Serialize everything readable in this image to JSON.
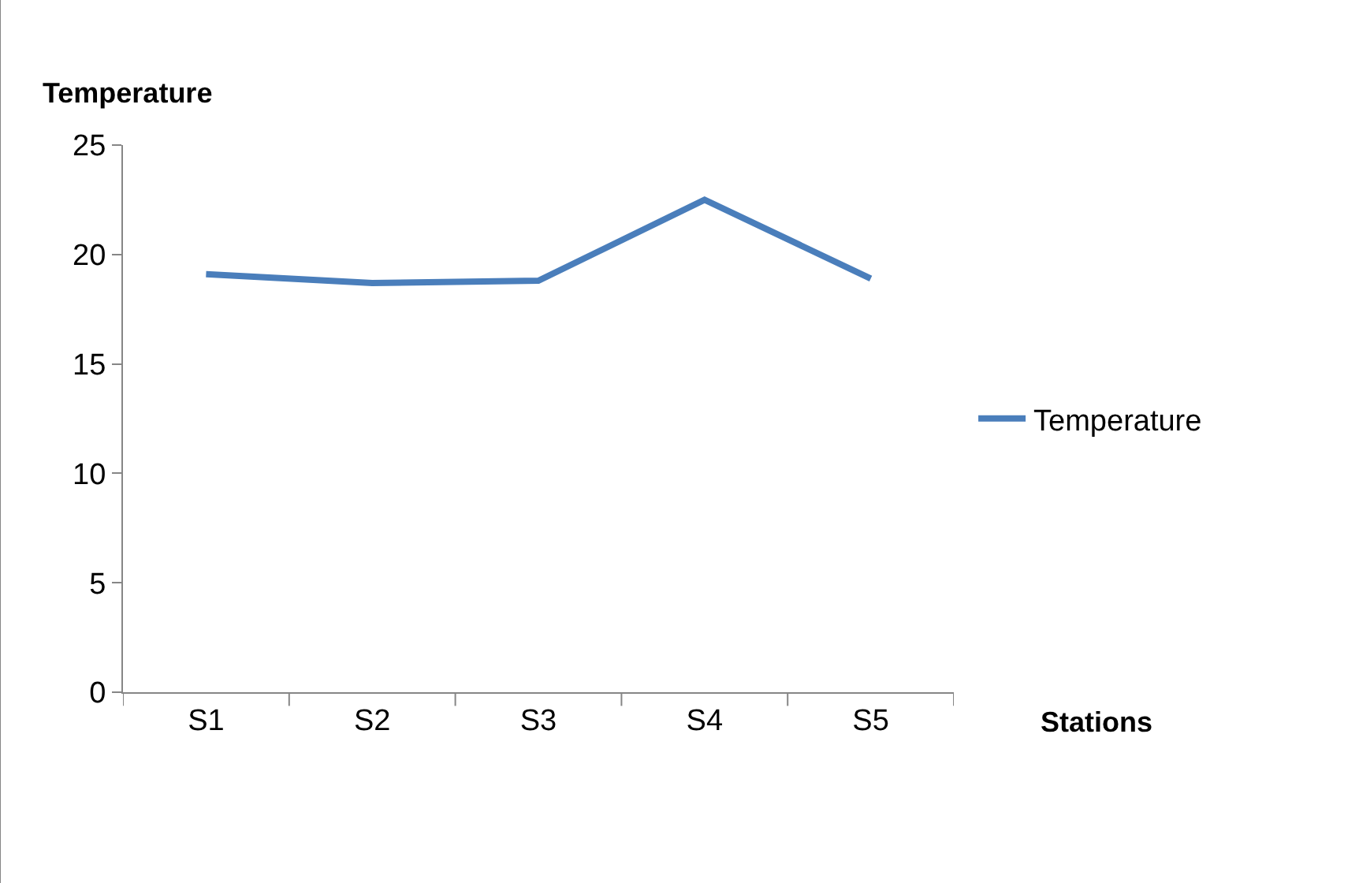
{
  "chart_data": {
    "type": "line",
    "ylabel": "Temperature",
    "xlabel": "Stations",
    "categories": [
      "S1",
      "S2",
      "S3",
      "S4",
      "S5"
    ],
    "series": [
      {
        "name": "Temperature",
        "color": "#4a7ebb",
        "values": [
          19.1,
          18.7,
          18.8,
          22.5,
          18.9
        ]
      }
    ],
    "ylim": [
      0,
      25
    ],
    "yticks": [
      0,
      5,
      10,
      15,
      20,
      25
    ],
    "legend": "right",
    "marker": "none",
    "line_style": "solid"
  }
}
